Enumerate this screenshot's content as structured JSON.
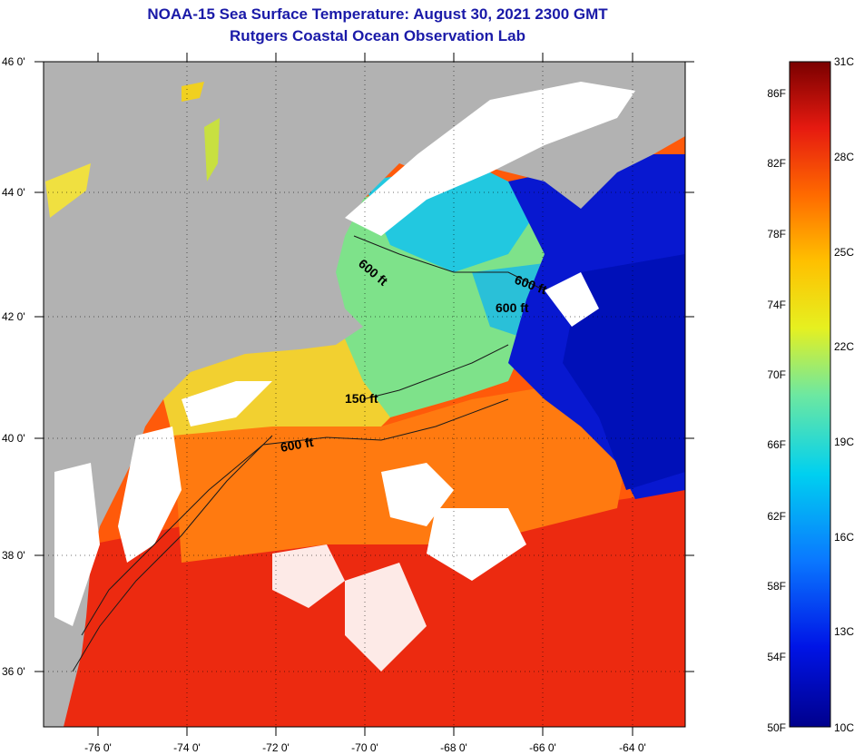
{
  "title_line1": "NOAA-15 Sea Surface Temperature:  August 30, 2021 2300 GMT",
  "title_line2": "Rutgers Coastal Ocean Observation Lab",
  "lat_labels": [
    "46 0'",
    "44 0'",
    "42 0'",
    "40 0'",
    "38 0'",
    "36 0'"
  ],
  "lon_labels": [
    "-76 0'",
    "-74 0'",
    "-72 0'",
    "-70 0'",
    "-68 0'",
    "-66 0'",
    "-64 0'"
  ],
  "contours": [
    "600 ft",
    "600 ft",
    "600 ft",
    "150 ft",
    "600 ft"
  ],
  "colorbar": {
    "fahrenheit": [
      "86F",
      "82F",
      "78F",
      "74F",
      "70F",
      "66F",
      "62F",
      "58F",
      "54F",
      "50F"
    ],
    "celsius": [
      "31C",
      "28C",
      "25C",
      "22C",
      "19C",
      "16C",
      "13C",
      "10C"
    ]
  },
  "colors": {
    "land": "#b2b2b2",
    "cloud": "#ffffff",
    "title": "#1a1aa8"
  }
}
